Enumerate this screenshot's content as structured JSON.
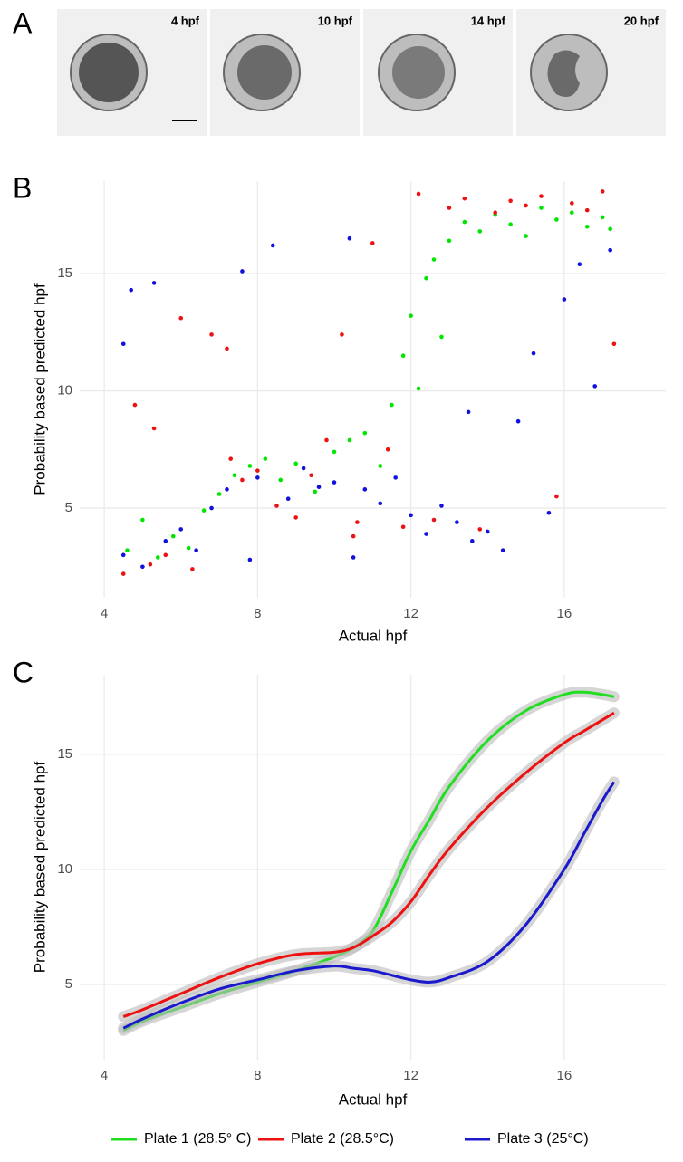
{
  "panel_a": {
    "panel_label": "A",
    "images": [
      {
        "label": "4 hpf"
      },
      {
        "label": "10 hpf"
      },
      {
        "label": "14 hpf"
      },
      {
        "label": "20 hpf"
      }
    ]
  },
  "chart_data": [
    {
      "type": "scatter",
      "panel_label": "B",
      "x_label": "Actual hpf",
      "y_label": "Probability based predicted hpf",
      "xlim": [
        3.36,
        18.65
      ],
      "ylim": [
        1.18,
        18.94
      ],
      "xticks": [
        4,
        8,
        12,
        16
      ],
      "yticks": [
        5,
        10,
        15
      ],
      "grid": true,
      "series": [
        {
          "color": "#00e600",
          "x": [
            4.6,
            5.0,
            5.4,
            5.8,
            6.2,
            6.6,
            7.0,
            7.4,
            7.8,
            8.2,
            8.6,
            9.0,
            9.5,
            10.0,
            10.4,
            10.8,
            11.2,
            11.5,
            11.8,
            12.0,
            12.2,
            12.4,
            12.6,
            12.8,
            13.0,
            13.4,
            13.8,
            14.2,
            14.6,
            15.0,
            15.4,
            15.8,
            16.2,
            16.6,
            17.0,
            17.2
          ],
          "y": [
            3.2,
            4.5,
            2.9,
            3.8,
            3.3,
            4.9,
            5.6,
            6.4,
            6.8,
            7.1,
            6.2,
            6.9,
            5.7,
            7.4,
            7.9,
            8.2,
            6.8,
            9.4,
            11.5,
            13.2,
            10.1,
            14.8,
            15.6,
            12.3,
            16.4,
            17.2,
            16.8,
            17.5,
            17.1,
            16.6,
            17.8,
            17.3,
            17.6,
            17.0,
            17.4,
            16.9
          ]
        },
        {
          "color": "#ee1111",
          "x": [
            4.5,
            4.8,
            5.2,
            5.6,
            6.0,
            6.3,
            6.8,
            7.2,
            7.6,
            8.0,
            8.5,
            9.0,
            9.4,
            9.8,
            10.2,
            10.6,
            11.0,
            11.4,
            11.8,
            12.2,
            12.6,
            13.0,
            13.4,
            13.8,
            14.2,
            14.6,
            15.0,
            15.4,
            15.8,
            16.2,
            16.6,
            17.0,
            17.3,
            10.5,
            7.3,
            5.3
          ],
          "y": [
            2.2,
            9.4,
            2.6,
            3.0,
            13.1,
            2.4,
            12.4,
            11.8,
            6.2,
            6.6,
            5.1,
            4.6,
            6.4,
            7.9,
            12.4,
            4.4,
            16.3,
            7.5,
            4.2,
            18.4,
            4.5,
            17.8,
            18.2,
            4.1,
            17.6,
            18.1,
            17.9,
            18.3,
            5.5,
            18.0,
            17.7,
            18.5,
            12.0,
            3.8,
            7.1,
            8.4
          ]
        },
        {
          "color": "#1111dd",
          "x": [
            4.5,
            4.7,
            5.0,
            5.3,
            5.6,
            6.0,
            6.4,
            6.8,
            7.2,
            7.6,
            8.0,
            8.4,
            8.8,
            9.2,
            9.6,
            10.0,
            10.4,
            10.8,
            11.2,
            11.6,
            12.0,
            12.4,
            12.8,
            13.2,
            13.6,
            14.0,
            14.4,
            14.8,
            15.2,
            15.6,
            16.0,
            16.4,
            16.8,
            17.2,
            7.8,
            10.5,
            4.5,
            13.5
          ],
          "y": [
            3.0,
            14.3,
            2.5,
            14.6,
            3.6,
            4.1,
            3.2,
            5.0,
            5.8,
            15.1,
            6.3,
            16.2,
            5.4,
            6.7,
            5.9,
            6.1,
            16.5,
            5.8,
            5.2,
            6.3,
            4.7,
            3.9,
            5.1,
            4.4,
            3.6,
            4.0,
            3.2,
            8.7,
            11.6,
            4.8,
            13.9,
            15.4,
            10.2,
            16.0,
            2.8,
            2.9,
            12.0,
            9.1
          ]
        }
      ]
    },
    {
      "type": "line",
      "panel_label": "C",
      "x_label": "Actual hpf",
      "y_label": "Probability based predicted hpf",
      "xlim": [
        3.36,
        18.65
      ],
      "ylim": [
        1.73,
        18.46
      ],
      "xticks": [
        4,
        8,
        12,
        16
      ],
      "yticks": [
        5,
        10,
        15
      ],
      "grid": true,
      "legend": "bottom",
      "x": [
        4.5,
        5,
        6,
        7,
        8,
        9,
        10,
        10.5,
        11,
        11.5,
        12,
        12.5,
        13,
        14,
        15,
        16,
        16.5,
        17,
        17.3
      ],
      "series": [
        {
          "name": "Plate 1 (28.5° C)",
          "color": "#22dd22",
          "values": [
            3.0,
            3.4,
            4.0,
            4.6,
            5.1,
            5.6,
            6.2,
            6.6,
            7.3,
            9.0,
            10.8,
            12.2,
            13.6,
            15.6,
            16.9,
            17.6,
            17.7,
            17.6,
            17.5
          ]
        },
        {
          "name": "Plate 2 (28.5°C)",
          "color": "#ee1111",
          "values": [
            3.6,
            3.9,
            4.6,
            5.3,
            5.9,
            6.3,
            6.4,
            6.6,
            7.1,
            7.7,
            8.6,
            9.8,
            10.9,
            12.7,
            14.2,
            15.5,
            16.0,
            16.5,
            16.8
          ]
        },
        {
          "name": "Plate 3 (25°C)",
          "color": "#1a1acc",
          "values": [
            3.1,
            3.5,
            4.2,
            4.8,
            5.2,
            5.6,
            5.8,
            5.7,
            5.6,
            5.4,
            5.2,
            5.1,
            5.3,
            6.0,
            7.6,
            10.0,
            11.5,
            13.0,
            13.8
          ]
        }
      ]
    }
  ]
}
